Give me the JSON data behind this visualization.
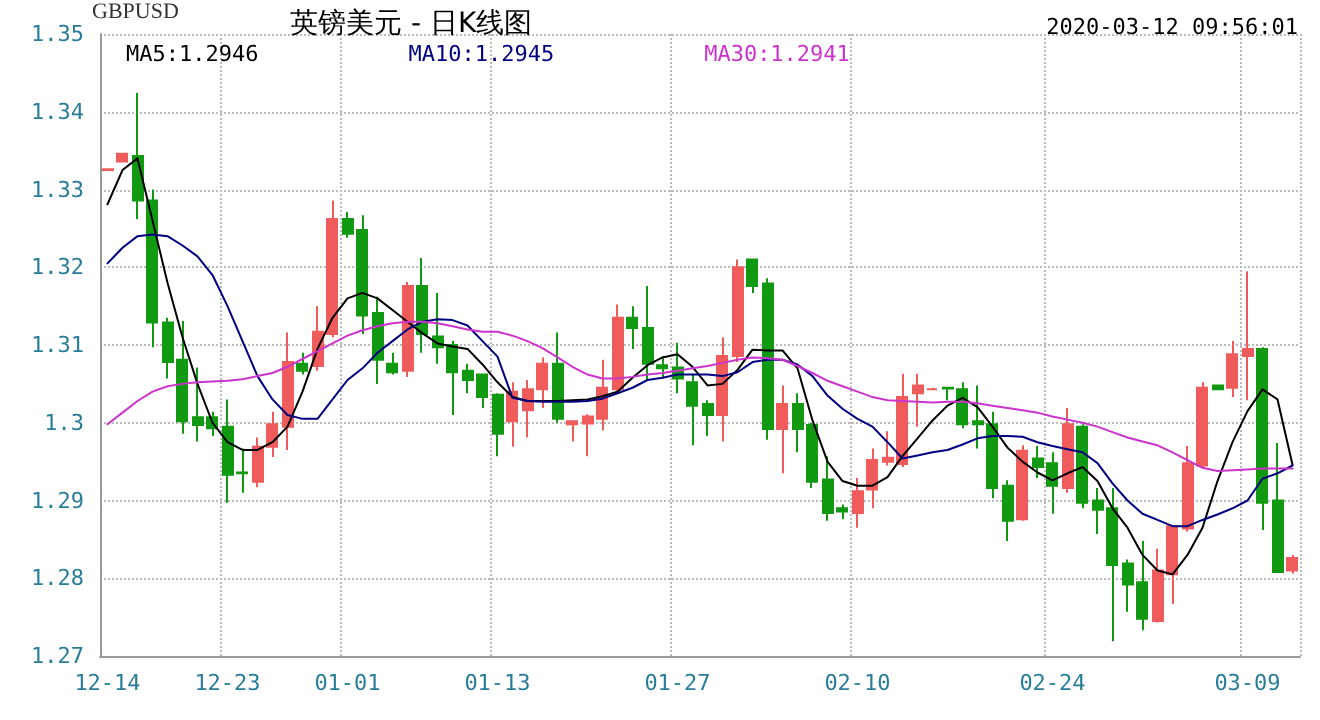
{
  "chart_data": {
    "type": "candlestick",
    "title": "英镑美元 - 日K线图",
    "subtitle": "2020-03-12 09:56:01",
    "ylabel": "GBPUSD",
    "categories": [
      "12-14",
      null,
      null,
      null,
      null,
      null,
      null,
      null,
      "12-23",
      null,
      null,
      null,
      null,
      null,
      null,
      null,
      "01-01",
      null,
      null,
      null,
      null,
      null,
      null,
      null,
      null,
      null,
      "01-13",
      null,
      null,
      null,
      null,
      null,
      null,
      null,
      null,
      null,
      null,
      null,
      "01-27",
      null,
      null,
      null,
      null,
      null,
      null,
      null,
      null,
      null,
      null,
      null,
      "02-10",
      null,
      null,
      null,
      null,
      null,
      null,
      null,
      null,
      null,
      null,
      null,
      null,
      "02-24",
      null,
      null,
      null,
      null,
      null,
      null,
      null,
      null,
      null,
      null,
      null,
      null,
      "03-09",
      null,
      null,
      null
    ],
    "ylim": [
      1.27,
      1.35
    ],
    "yticks": [
      1.27,
      1.28,
      1.29,
      1.3,
      1.31,
      1.32,
      1.33,
      1.34,
      1.35
    ],
    "grid": true,
    "legend": "top left",
    "marker": "none",
    "line_style": "solid",
    "series": [
      {
        "colors": [
          "#f05c5c",
          "#f05c5c",
          "#119911",
          "#119911",
          "#119911",
          "#119911",
          "#119911",
          "#119911",
          "#119911",
          "#119911",
          "#f05c5c",
          "#f05c5c",
          "#f05c5c",
          "#119911",
          "#f05c5c",
          "#f05c5c",
          "#119911",
          "#119911",
          "#119911",
          "#119911",
          "#f05c5c",
          "#119911",
          "#119911",
          "#119911",
          "#119911",
          "#119911",
          "#119911",
          "#f05c5c",
          "#f05c5c",
          "#f05c5c",
          "#119911",
          "#f05c5c",
          "#f05c5c",
          "#f05c5c",
          "#f05c5c",
          "#119911",
          "#119911",
          "#119911",
          "#119911",
          "#119911",
          "#119911",
          "#f05c5c",
          "#f05c5c",
          "#119911",
          "#119911",
          "#f05c5c",
          "#119911",
          "#119911",
          "#119911",
          "#119911",
          "#f05c5c",
          "#f05c5c",
          "#f05c5c",
          "#f05c5c",
          "#f05c5c",
          "#f05c5c",
          "#119911",
          "#119911",
          "#119911",
          "#119911",
          "#119911",
          "#f05c5c",
          "#119911",
          "#119911",
          "#f05c5c",
          "#119911",
          "#119911",
          "#119911",
          "#119911",
          "#119911",
          "#f05c5c",
          "#f05c5c",
          "#f05c5c",
          "#f05c5c",
          "#119911",
          "#f05c5c",
          "#f05c5c",
          "#119911",
          "#119911",
          "#f05c5c"
        ],
        "ohlc": [
          [
            1.3325,
            1.3326,
            1.3325,
            1.3326
          ],
          [
            1.3336,
            1.3346,
            1.3336,
            1.3346
          ],
          [
            1.3343,
            1.3424,
            1.3262,
            1.3286
          ],
          [
            1.3286,
            1.33,
            1.3097,
            1.3129
          ],
          [
            1.3129,
            1.3135,
            1.3057,
            1.3078
          ],
          [
            1.3081,
            1.3131,
            1.2986,
            1.3002
          ],
          [
            1.3007,
            1.3071,
            1.2976,
            1.2997
          ],
          [
            1.3007,
            1.3014,
            1.2983,
            1.2993
          ],
          [
            1.2995,
            1.303,
            1.2897,
            1.2933
          ],
          [
            1.2936,
            1.2967,
            1.291,
            1.2935
          ],
          [
            1.2924,
            1.2981,
            1.2917,
            1.2969
          ],
          [
            1.2969,
            1.3014,
            1.2956,
            1.2998
          ],
          [
            1.2995,
            1.3116,
            1.2965,
            1.3078
          ],
          [
            1.3076,
            1.309,
            1.3062,
            1.3067
          ],
          [
            1.3073,
            1.315,
            1.3067,
            1.3117
          ],
          [
            1.3114,
            1.3286,
            1.311,
            1.3262
          ],
          [
            1.3262,
            1.3271,
            1.3238,
            1.3243
          ],
          [
            1.3248,
            1.3267,
            1.3114,
            1.3138
          ],
          [
            1.3141,
            1.3162,
            1.305,
            1.3081
          ],
          [
            1.3076,
            1.309,
            1.3062,
            1.3065
          ],
          [
            1.3067,
            1.3181,
            1.3059,
            1.3176
          ],
          [
            1.3176,
            1.3212,
            1.309,
            1.3114
          ],
          [
            1.3111,
            1.3167,
            1.3076,
            1.3097
          ],
          [
            1.31,
            1.3105,
            1.301,
            1.3065
          ],
          [
            1.3067,
            1.3076,
            1.3038,
            1.3055
          ],
          [
            1.3062,
            1.3062,
            1.3019,
            1.3033
          ],
          [
            1.3036,
            1.3038,
            1.2957,
            1.2986
          ],
          [
            1.3002,
            1.3052,
            1.2969,
            1.304
          ],
          [
            1.3016,
            1.3055,
            1.2981,
            1.3043
          ],
          [
            1.3043,
            1.3084,
            1.3019,
            1.3076
          ],
          [
            1.3076,
            1.3116,
            1.3,
            1.3005
          ],
          [
            1.2998,
            1.3002,
            1.2976,
            1.3002
          ],
          [
            1.2999,
            1.3011,
            1.2957,
            1.3008
          ],
          [
            1.3005,
            1.3081,
            1.299,
            1.3045
          ],
          [
            1.3043,
            1.3152,
            1.3038,
            1.3135
          ],
          [
            1.3135,
            1.315,
            1.3095,
            1.3122
          ],
          [
            1.3122,
            1.3176,
            1.3055,
            1.3076
          ],
          [
            1.3074,
            1.3086,
            1.3057,
            1.307
          ],
          [
            1.3071,
            1.3103,
            1.3038,
            1.3057
          ],
          [
            1.3052,
            1.3062,
            1.2971,
            1.3022
          ],
          [
            1.3024,
            1.3029,
            1.2983,
            1.301
          ],
          [
            1.301,
            1.311,
            1.2976,
            1.3086
          ],
          [
            1.3086,
            1.321,
            1.3078,
            1.32
          ],
          [
            1.321,
            1.3211,
            1.3167,
            1.3176
          ],
          [
            1.3179,
            1.3186,
            1.2978,
            1.2992
          ],
          [
            1.2992,
            1.3048,
            1.2935,
            1.3024
          ],
          [
            1.3024,
            1.3038,
            1.2962,
            1.2992
          ],
          [
            1.2997,
            1.3,
            1.2916,
            1.2924
          ],
          [
            1.2927,
            1.2957,
            1.2874,
            1.2884
          ],
          [
            1.289,
            1.2895,
            1.2876,
            1.2886
          ],
          [
            1.2884,
            1.2929,
            1.2865,
            1.2912
          ],
          [
            1.2914,
            1.2967,
            1.289,
            1.2952
          ],
          [
            1.295,
            1.2989,
            1.2945,
            1.2955
          ],
          [
            1.2947,
            1.3063,
            1.2943,
            1.3033
          ],
          [
            1.3038,
            1.3063,
            1.2995,
            1.3048
          ],
          [
            1.3043,
            1.3045,
            1.3042,
            1.3043
          ],
          [
            1.3045,
            1.3045,
            1.3029,
            1.3044
          ],
          [
            1.3043,
            1.3052,
            1.2993,
            1.2998
          ],
          [
            1.3002,
            1.3048,
            1.2967,
            1.2998
          ],
          [
            1.2998,
            1.3014,
            1.2903,
            1.2916
          ],
          [
            1.2919,
            1.2926,
            1.2848,
            1.2874
          ],
          [
            1.2876,
            1.2971,
            1.2874,
            1.2964
          ],
          [
            1.2954,
            1.297,
            1.2929,
            1.2943
          ],
          [
            1.2948,
            1.2962,
            1.2883,
            1.2919
          ],
          [
            1.2916,
            1.3019,
            1.291,
            1.2998
          ],
          [
            1.2995,
            1.2998,
            1.289,
            1.2897
          ],
          [
            1.29,
            1.2916,
            1.2857,
            1.2888
          ],
          [
            1.289,
            1.2916,
            1.2719,
            1.2817
          ],
          [
            1.2819,
            1.2824,
            1.2757,
            1.2792
          ],
          [
            1.2795,
            1.2848,
            1.2733,
            1.2748
          ],
          [
            1.2745,
            1.2838,
            1.2743,
            1.281
          ],
          [
            1.2805,
            1.2867,
            1.2767,
            1.2867
          ],
          [
            1.2864,
            1.297,
            1.286,
            1.2948
          ],
          [
            1.2945,
            1.3052,
            1.2941,
            1.3045
          ],
          [
            1.3048,
            1.3048,
            1.3043,
            1.3043
          ],
          [
            1.3045,
            1.3105,
            1.3033,
            1.3088
          ],
          [
            1.3086,
            1.3195,
            1.3029,
            1.3095
          ],
          [
            1.3095,
            1.3097,
            1.2862,
            1.2897
          ],
          [
            1.29,
            1.2974,
            1.2808,
            1.2808
          ],
          [
            1.281,
            1.283,
            1.2806,
            1.2826
          ]
        ]
      },
      {
        "type": "line",
        "name": "MA5:1.2946",
        "color": "#000000",
        "values": [
          1.3281,
          1.3325,
          1.334,
          1.326,
          1.318,
          1.311,
          1.305,
          1.3,
          1.2975,
          1.2965,
          1.2965,
          1.2975,
          1.2995,
          1.304,
          1.3095,
          1.3135,
          1.316,
          1.3167,
          1.316,
          1.3145,
          1.313,
          1.3115,
          1.3102,
          1.3098,
          1.3095,
          1.3075,
          1.3052,
          1.3033,
          1.3028,
          1.3028,
          1.3028,
          1.3029,
          1.303,
          1.3034,
          1.304,
          1.3058,
          1.3074,
          1.3084,
          1.3088,
          1.3072,
          1.3048,
          1.305,
          1.3068,
          1.3094,
          1.3093,
          1.3093,
          1.307,
          1.3003,
          1.295,
          1.2925,
          1.2919,
          1.2919,
          1.293,
          1.2957,
          1.298,
          1.3003,
          1.3022,
          1.3032,
          1.302,
          1.2995,
          1.2968,
          1.295,
          1.2936,
          1.2926,
          1.2935,
          1.2943,
          1.2925,
          1.289,
          1.2865,
          1.283,
          1.281,
          1.2805,
          1.283,
          1.2865,
          1.2925,
          1.2975,
          1.3015,
          1.3043,
          1.303,
          1.2946
        ]
      },
      {
        "type": "line",
        "name": "MA10:1.2945",
        "color": "#000080",
        "values": [
          1.3205,
          1.3225,
          1.324,
          1.3242,
          1.324,
          1.3228,
          1.3214,
          1.319,
          1.315,
          1.3105,
          1.306,
          1.303,
          1.301,
          1.3005,
          1.3005,
          1.303,
          1.3055,
          1.307,
          1.309,
          1.3105,
          1.312,
          1.313,
          1.3133,
          1.3132,
          1.3125,
          1.3105,
          1.3085,
          1.3032,
          1.3028,
          1.3027,
          1.3027,
          1.3027,
          1.3028,
          1.3031,
          1.3038,
          1.3045,
          1.3055,
          1.3058,
          1.3062,
          1.3062,
          1.3062,
          1.306,
          1.3065,
          1.3078,
          1.3081,
          1.3081,
          1.3075,
          1.306,
          1.3035,
          1.3018,
          1.3005,
          1.2995,
          1.2975,
          1.2954,
          1.2958,
          1.2962,
          1.2965,
          1.2972,
          1.298,
          1.2983,
          1.2983,
          1.2982,
          1.2975,
          1.297,
          1.2966,
          1.2962,
          1.2948,
          1.2922,
          1.29,
          1.2883,
          1.2875,
          1.2867,
          1.2867,
          1.2875,
          1.2882,
          1.289,
          1.29,
          1.2928,
          1.2935,
          1.2945
        ]
      },
      {
        "type": "line",
        "name": "MA30:1.2941",
        "color": "#cc33cc",
        "values": [
          1.2998,
          1.3013,
          1.3028,
          1.304,
          1.3047,
          1.305,
          1.3052,
          1.3053,
          1.3054,
          1.3056,
          1.306,
          1.3064,
          1.3072,
          1.3082,
          1.3092,
          1.3102,
          1.3112,
          1.3119,
          1.3124,
          1.3128,
          1.313,
          1.313,
          1.3128,
          1.3124,
          1.312,
          1.3117,
          1.3117,
          1.3112,
          1.3105,
          1.3096,
          1.3084,
          1.3072,
          1.3062,
          1.3057,
          1.3057,
          1.3059,
          1.3062,
          1.3064,
          1.3067,
          1.307,
          1.3073,
          1.3077,
          1.3081,
          1.3084,
          1.3083,
          1.3081,
          1.3073,
          1.3064,
          1.3054,
          1.3047,
          1.304,
          1.3033,
          1.3029,
          1.3028,
          1.3027,
          1.3026,
          1.3027,
          1.3027,
          1.3025,
          1.3022,
          1.3019,
          1.3016,
          1.3013,
          1.3008,
          1.3004,
          1.3,
          1.2995,
          1.2988,
          1.2981,
          1.2976,
          1.2971,
          1.2962,
          1.2952,
          1.2942,
          1.2938,
          1.2939,
          1.294,
          1.2941,
          1.2941,
          1.2941
        ]
      }
    ]
  }
}
